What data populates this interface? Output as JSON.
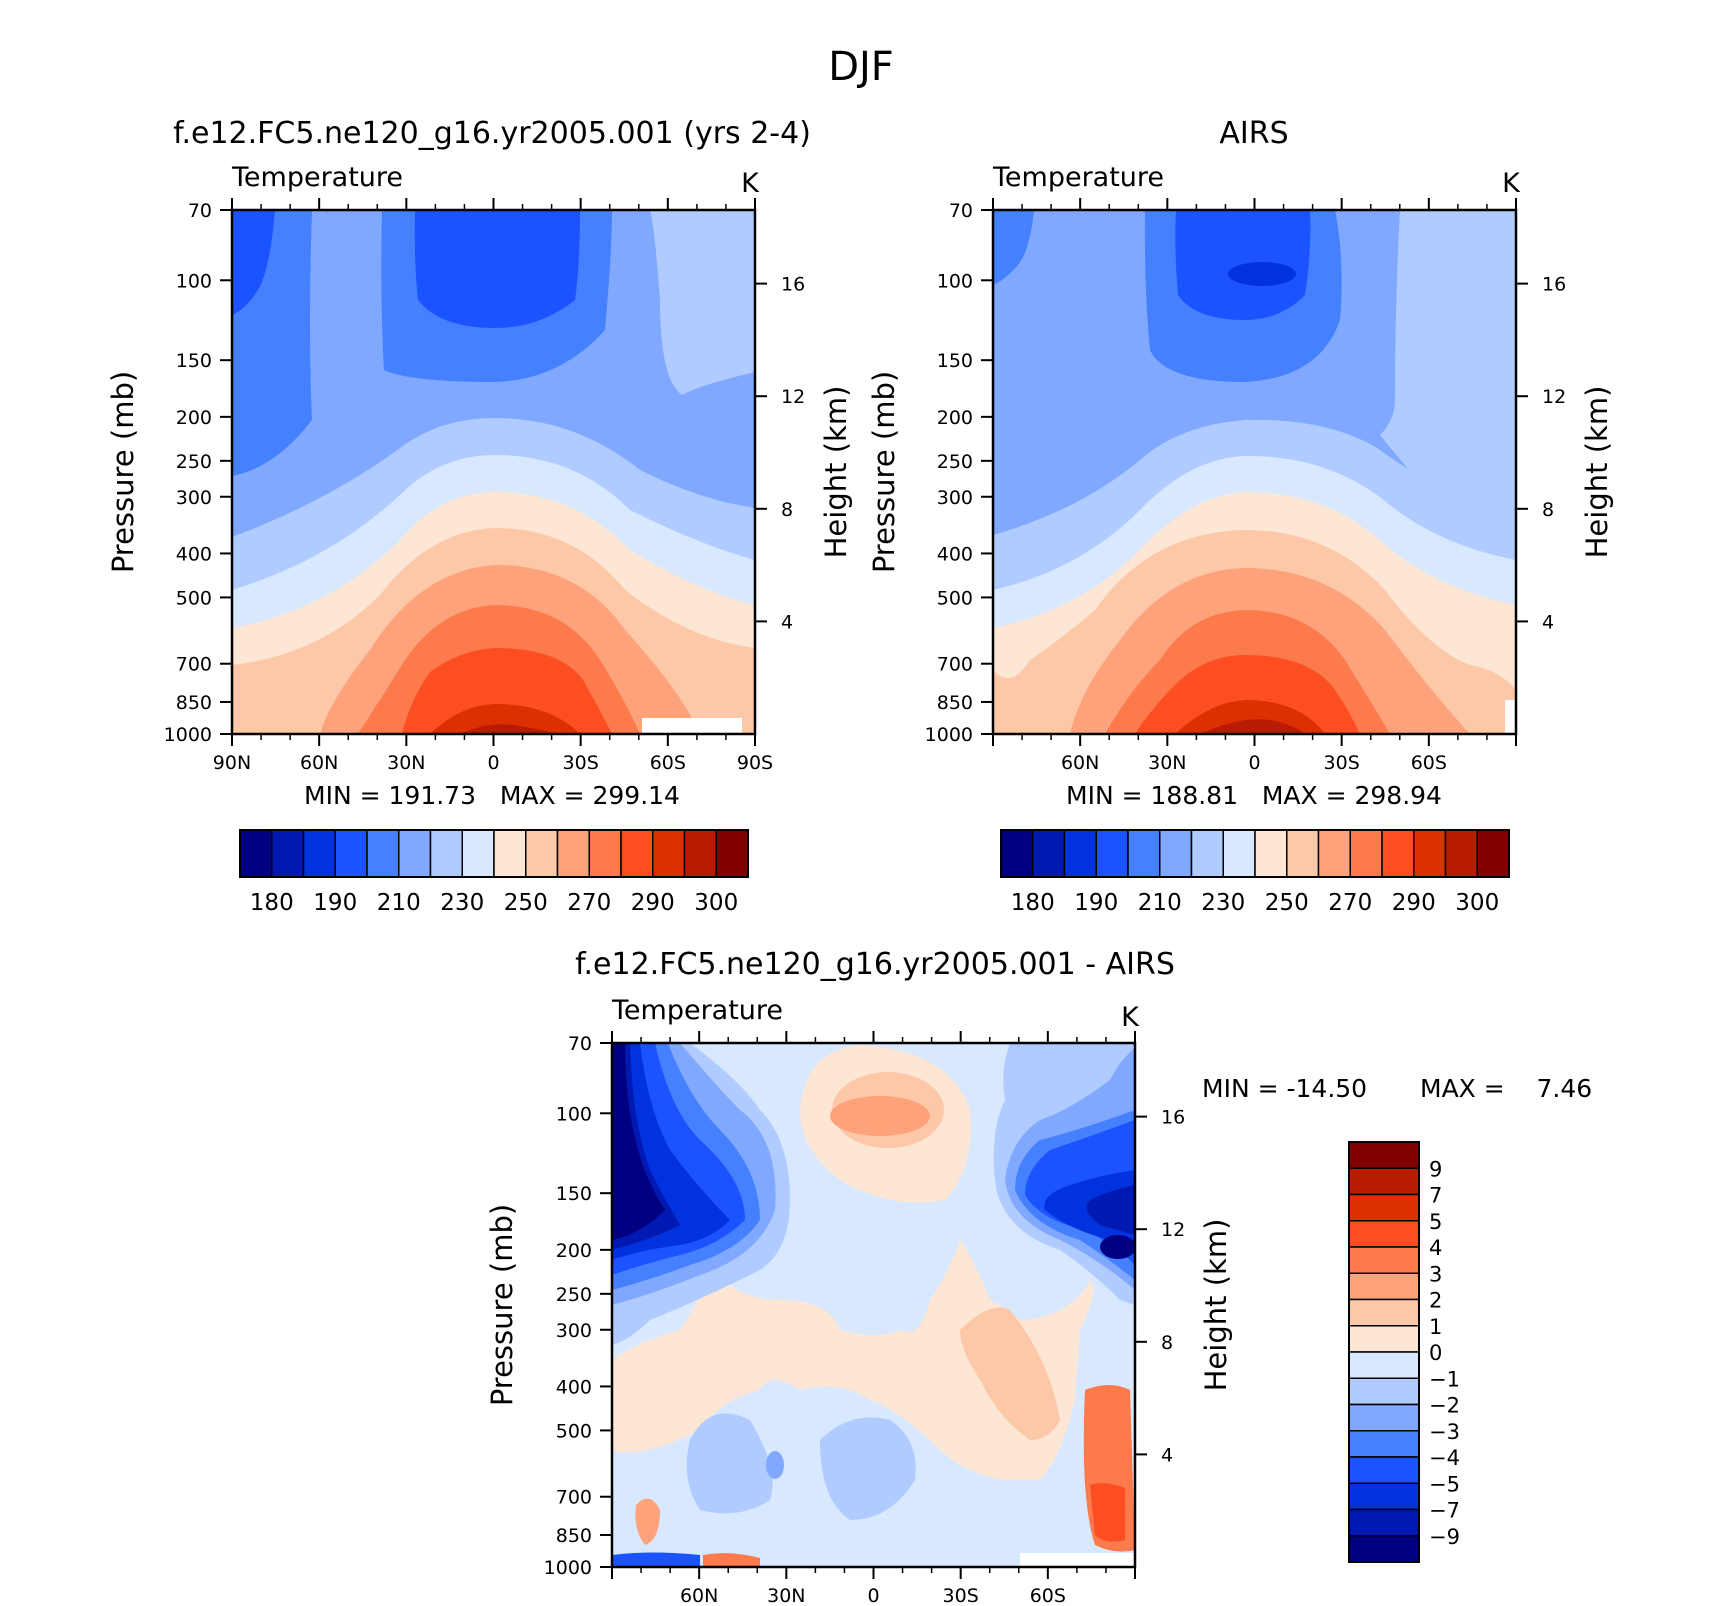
{
  "figure_title": "DJF",
  "palettes": {
    "abs": [
      "#000080",
      "#0019b3",
      "#0033dd",
      "#1a53ff",
      "#4580ff",
      "#80a8ff",
      "#b0cbff",
      "#d8e8ff",
      "#fde6d4",
      "#fdc8a8",
      "#fda27a",
      "#fd7a4c",
      "#fd4e22",
      "#dd3000",
      "#b81c00",
      "#800000"
    ],
    "diff": [
      "#000080",
      "#0019b3",
      "#0033dd",
      "#1a53ff",
      "#4580ff",
      "#80a8ff",
      "#b0cbff",
      "#d8e8ff",
      "#fde6d4",
      "#fdc8a8",
      "#fda27a",
      "#fd7a4c",
      "#fd4e22",
      "#dd3000",
      "#b81c00",
      "#800000"
    ]
  },
  "chart_data": [
    {
      "type": "heatmap",
      "title": "f.e12.FC5.ne120_g16.yr2005.001 (yrs 2-4)",
      "subtitle": "Temperature",
      "units": "K",
      "ylabel": "Pressure (mb)",
      "ylabel_right": "Height (km)",
      "yticks": [
        "70",
        "100",
        "150",
        "200",
        "250",
        "300",
        "400",
        "500",
        "700",
        "850",
        "1000"
      ],
      "yticks_right": [
        "16",
        "12",
        "8",
        "4"
      ],
      "xticks": [
        "90N",
        "60N",
        "30N",
        "0",
        "30S",
        "60S",
        "90S"
      ],
      "xlim": [
        90,
        -90
      ],
      "ylim": [
        1000,
        70
      ],
      "y_scale": "log",
      "min_text": "MIN = 191.73",
      "max_text": "MAX = 299.14",
      "colorbar_labels": [
        "180",
        "190",
        "210",
        "230",
        "250",
        "270",
        "290",
        "300"
      ],
      "approx_values": {
        "tropopause_min_K": 192,
        "surface_equator_K": 299
      }
    },
    {
      "type": "heatmap",
      "title": "AIRS",
      "subtitle": "Temperature",
      "units": "K",
      "ylabel": "Pressure (mb)",
      "ylabel_right": "Height (km)",
      "yticks": [
        "70",
        "100",
        "150",
        "200",
        "250",
        "300",
        "400",
        "500",
        "700",
        "850",
        "1000"
      ],
      "yticks_right": [
        "16",
        "12",
        "8",
        "4"
      ],
      "xticks": [
        "60N",
        "30N",
        "0",
        "30S",
        "60S"
      ],
      "xlim": [
        90,
        -90
      ],
      "ylim": [
        1000,
        70
      ],
      "y_scale": "log",
      "min_text": "MIN = 188.81",
      "max_text": "MAX = 298.94",
      "colorbar_labels": [
        "180",
        "190",
        "210",
        "230",
        "250",
        "270",
        "290",
        "300"
      ],
      "approx_values": {
        "tropopause_min_K": 189,
        "surface_equator_K": 299
      }
    },
    {
      "type": "heatmap",
      "title": "f.e12.FC5.ne120_g16.yr2005.001 - AIRS",
      "subtitle": "Temperature",
      "units": "K",
      "ylabel": "Pressure (mb)",
      "ylabel_right": "Height (km)",
      "yticks": [
        "70",
        "100",
        "150",
        "200",
        "250",
        "300",
        "400",
        "500",
        "700",
        "850",
        "1000"
      ],
      "yticks_right": [
        "16",
        "12",
        "8",
        "4"
      ],
      "xticks": [
        "60N",
        "30N",
        "0",
        "30S",
        "60S"
      ],
      "xlim": [
        90,
        -90
      ],
      "ylim": [
        1000,
        70
      ],
      "y_scale": "log",
      "min_text": "MIN = -14.50",
      "max_text": "MAX =    7.46",
      "colorbar_labels": [
        "9",
        "7",
        "5",
        "4",
        "3",
        "2",
        "1",
        "0",
        "-1",
        "-2",
        "-3",
        "-4",
        "-5",
        "-7",
        "-9"
      ],
      "approx_values": {
        "min_K": -14.5,
        "max_K": 7.46
      }
    }
  ]
}
